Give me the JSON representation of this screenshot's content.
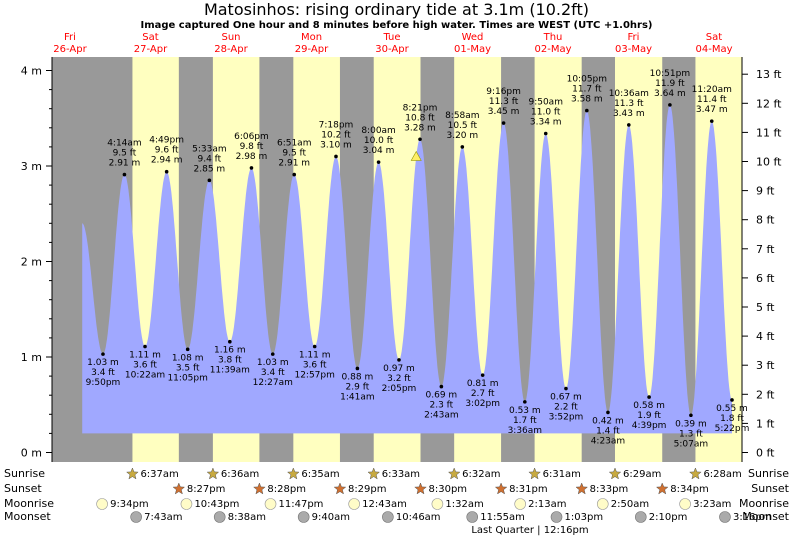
{
  "title": "Matosinhos: rising  ordinary tide at 3.1m (10.2ft)",
  "subtitle": "Image captured One hour and 8 minutes before high water. Times are WEST (UTC +1.0hrs)",
  "days": [
    {
      "dow": "Fri",
      "date": "26-Apr"
    },
    {
      "dow": "Sat",
      "date": "27-Apr"
    },
    {
      "dow": "Sun",
      "date": "28-Apr"
    },
    {
      "dow": "Mon",
      "date": "29-Apr"
    },
    {
      "dow": "Tue",
      "date": "30-Apr"
    },
    {
      "dow": "Wed",
      "date": "01-May"
    },
    {
      "dow": "Thu",
      "date": "02-May"
    },
    {
      "dow": "Fri",
      "date": "03-May"
    },
    {
      "dow": "Sat",
      "date": "04-May"
    }
  ],
  "row_labels": {
    "sunrise": "Sunrise",
    "sunset": "Sunset",
    "moonrise": "Moonrise",
    "moonset": "Moonset"
  },
  "moon_phase_note": "Last Quarter | 12:16pm",
  "colors": {
    "night": "#999999",
    "day": "#ffffc0",
    "water": "#a0a8ff",
    "text_red": "#ff0000",
    "sun_star": "#c8aa40",
    "sunset_star": "#d07030",
    "moonrise": "#fffcc8",
    "moonset": "#aaaaaa"
  },
  "chart_data": {
    "type": "area",
    "title": "Matosinhos: rising  ordinary tide at 3.1m (10.2ft)",
    "y_left_ticks": [
      "0 m",
      "1 m",
      "2 m",
      "3 m",
      "4 m"
    ],
    "y_right_ticks": [
      "0 ft",
      "1 ft",
      "2 ft",
      "3 ft",
      "4 ft",
      "5 ft",
      "6 ft",
      "7 ft",
      "8 ft",
      "9 ft",
      "10 ft",
      "11 ft",
      "12 ft",
      "13 ft"
    ],
    "ylim_m": [
      0,
      4.2
    ],
    "current_level_m": 3.1,
    "sunrise": [
      "6:37am",
      "6:36am",
      "6:35am",
      "6:33am",
      "6:32am",
      "6:31am",
      "6:29am",
      "6:28am"
    ],
    "sunset": [
      "8:27pm",
      "8:28pm",
      "8:29pm",
      "8:30pm",
      "8:31pm",
      "8:33pm",
      "8:34pm"
    ],
    "moonrise": [
      "9:34pm",
      "10:43pm",
      "11:47pm",
      "12:43am",
      "1:32am",
      "2:13am",
      "2:50am",
      "3:23am"
    ],
    "moonset": [
      "7:43am",
      "8:38am",
      "9:40am",
      "10:46am",
      "11:55am",
      "1:03pm",
      "2:10pm",
      "3:16pm"
    ],
    "tides": [
      {
        "type": "low",
        "time": "9:50 pm",
        "m": 1.03,
        "ft": "3.4 ft",
        "label_m": "1.03 m"
      },
      {
        "type": "high",
        "time": "4:14 am",
        "m": 2.91,
        "ft": "9.5 ft",
        "label_m": "2.91 m"
      },
      {
        "type": "low",
        "time": "10:22 am",
        "m": 1.11,
        "ft": "3.6 ft",
        "label_m": "1.11 m"
      },
      {
        "type": "high",
        "time": "4:49 pm",
        "m": 2.94,
        "ft": "9.6 ft",
        "label_m": "2.94 m"
      },
      {
        "type": "low",
        "time": "11:05 pm",
        "m": 1.08,
        "ft": "3.5 ft",
        "label_m": "1.08 m"
      },
      {
        "type": "high",
        "time": "5:33 am",
        "m": 2.85,
        "ft": "9.4 ft",
        "label_m": "2.85 m"
      },
      {
        "type": "low",
        "time": "11:39 am",
        "m": 1.16,
        "ft": "3.8 ft",
        "label_m": "1.16 m"
      },
      {
        "type": "high",
        "time": "6:06 pm",
        "m": 2.98,
        "ft": "9.8 ft",
        "label_m": "2.98 m"
      },
      {
        "type": "low",
        "time": "12:27 am",
        "m": 1.03,
        "ft": "3.4 ft",
        "label_m": "1.03 m"
      },
      {
        "type": "high",
        "time": "6:51 am",
        "m": 2.91,
        "ft": "9.5 ft",
        "label_m": "2.91 m"
      },
      {
        "type": "low",
        "time": "12:57 pm",
        "m": 1.11,
        "ft": "3.6 ft",
        "label_m": "1.11 m"
      },
      {
        "type": "high",
        "time": "7:18 pm",
        "m": 3.1,
        "ft": "10.2 ft",
        "label_m": "3.10 m"
      },
      {
        "type": "low",
        "time": "1:41 am",
        "m": 0.88,
        "ft": "2.9 ft",
        "label_m": "0.88 m"
      },
      {
        "type": "high",
        "time": "8:00 am",
        "m": 3.04,
        "ft": "10.0 ft",
        "label_m": "3.04 m"
      },
      {
        "type": "low",
        "time": "2:05 pm",
        "m": 0.97,
        "ft": "3.2 ft",
        "label_m": "0.97 m"
      },
      {
        "type": "high",
        "time": "8:21 pm",
        "m": 3.28,
        "ft": "10.8 ft",
        "label_m": "3.28 m"
      },
      {
        "type": "low",
        "time": "2:43 am",
        "m": 0.69,
        "ft": "2.3 ft",
        "label_m": "0.69 m"
      },
      {
        "type": "high",
        "time": "8:58 am",
        "m": 3.2,
        "ft": "10.5 ft",
        "label_m": "3.20 m"
      },
      {
        "type": "low",
        "time": "3:02 pm",
        "m": 0.81,
        "ft": "2.7 ft",
        "label_m": "0.81 m"
      },
      {
        "type": "high",
        "time": "9:16 pm",
        "m": 3.45,
        "ft": "11.3 ft",
        "label_m": "3.45 m"
      },
      {
        "type": "low",
        "time": "3:36 am",
        "m": 0.53,
        "ft": "1.7 ft",
        "label_m": "0.53 m"
      },
      {
        "type": "high",
        "time": "9:50 am",
        "m": 3.34,
        "ft": "11.0 ft",
        "label_m": "3.34 m"
      },
      {
        "type": "low",
        "time": "3:52 pm",
        "m": 0.67,
        "ft": "2.2 ft",
        "label_m": "0.67 m"
      },
      {
        "type": "high",
        "time": "10:05 pm",
        "m": 3.58,
        "ft": "11.7 ft",
        "label_m": "3.58 m"
      },
      {
        "type": "low",
        "time": "4:23 am",
        "m": 0.42,
        "ft": "1.4 ft",
        "label_m": "0.42 m"
      },
      {
        "type": "high",
        "time": "10:36 am",
        "m": 3.43,
        "ft": "11.3 ft",
        "label_m": "3.43 m"
      },
      {
        "type": "low",
        "time": "4:39 pm",
        "m": 0.58,
        "ft": "1.9 ft",
        "label_m": "0.58 m"
      },
      {
        "type": "high",
        "time": "10:51 pm",
        "m": 3.64,
        "ft": "11.9 ft",
        "label_m": "3.64 m"
      },
      {
        "type": "low",
        "time": "5:07 am",
        "m": 0.39,
        "ft": "1.3 ft",
        "label_m": "0.39 m"
      },
      {
        "type": "high",
        "time": "11:20 am",
        "m": 3.47,
        "ft": "11.4 ft",
        "label_m": "3.47 m"
      },
      {
        "type": "low",
        "time": "5:22 pm",
        "m": 0.55,
        "ft": "1.8 ft",
        "label_m": "0.55 m"
      }
    ]
  }
}
